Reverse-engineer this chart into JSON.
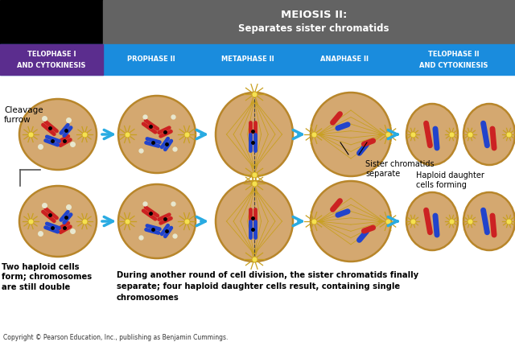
{
  "title_line1": "MEIOSIS II:",
  "title_line2": "Separates sister chromatids",
  "header_bg": "#636363",
  "header_text_color": "#ffffff",
  "black_box_color": "#000000",
  "blue_bar_color": "#1a8cdd",
  "purple_box_color": "#5b2d8e",
  "col_header_text": "#ffffff",
  "cell_fill": "#d4a870",
  "cell_edge": "#b8862a",
  "bg_color": "#ffffff",
  "arrow_color": "#29abe2",
  "note_bottom": "During another round of cell division, the sister chromatids finally\nseparate; four haploid daughter cells result, containing single\nchromosomes",
  "copyright": "Copyright © Pearson Education, Inc., publishing as Benjamin Cummings.",
  "label_cleavage": "Cleavage\nfurrow",
  "label_two_haploid": "Two haploid cells\nform; chromosomes\nare still double",
  "label_sister": "Sister chromatids\nseparate",
  "label_haploid_daughter": "Haploid daughter\ncells forming"
}
